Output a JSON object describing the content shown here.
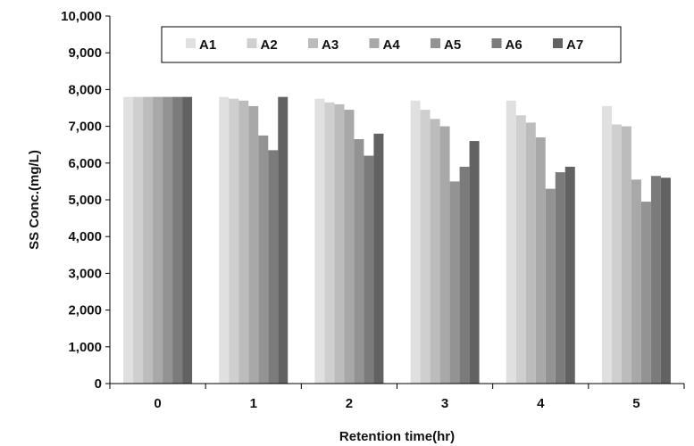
{
  "chart_data": {
    "type": "bar",
    "xlabel": "Retention time(hr)",
    "ylabel": "SS Conc.(mg/L)",
    "categories": [
      "0",
      "1",
      "2",
      "3",
      "4",
      "5"
    ],
    "ylim": [
      0,
      10000
    ],
    "yticks": [
      0,
      1000,
      2000,
      3000,
      4000,
      5000,
      6000,
      7000,
      8000,
      9000,
      10000
    ],
    "ytick_labels": [
      "0",
      "1,000",
      "2,000",
      "3,000",
      "4,000",
      "5,000",
      "6,000",
      "7,000",
      "8,000",
      "9,000",
      "10,000"
    ],
    "grid": false,
    "legend_position": "top",
    "series": [
      {
        "name": "A1",
        "color": "#e0e0e0",
        "values": [
          7800,
          7800,
          7750,
          7700,
          7700,
          7550
        ]
      },
      {
        "name": "A2",
        "color": "#cfcfcf",
        "values": [
          7800,
          7750,
          7650,
          7450,
          7300,
          7050
        ]
      },
      {
        "name": "A3",
        "color": "#bcbcbc",
        "values": [
          7800,
          7700,
          7600,
          7200,
          7100,
          7000
        ]
      },
      {
        "name": "A4",
        "color": "#a8a8a8",
        "values": [
          7800,
          7550,
          7450,
          7000,
          6700,
          5550
        ]
      },
      {
        "name": "A5",
        "color": "#939393",
        "values": [
          7800,
          6750,
          6650,
          5500,
          5300,
          4950
        ]
      },
      {
        "name": "A6",
        "color": "#7b7b7b",
        "values": [
          7800,
          6350,
          6200,
          5900,
          5750,
          5650
        ]
      },
      {
        "name": "A7",
        "color": "#626262",
        "values": [
          7800,
          7800,
          6800,
          6600,
          5900,
          5600
        ]
      }
    ]
  }
}
